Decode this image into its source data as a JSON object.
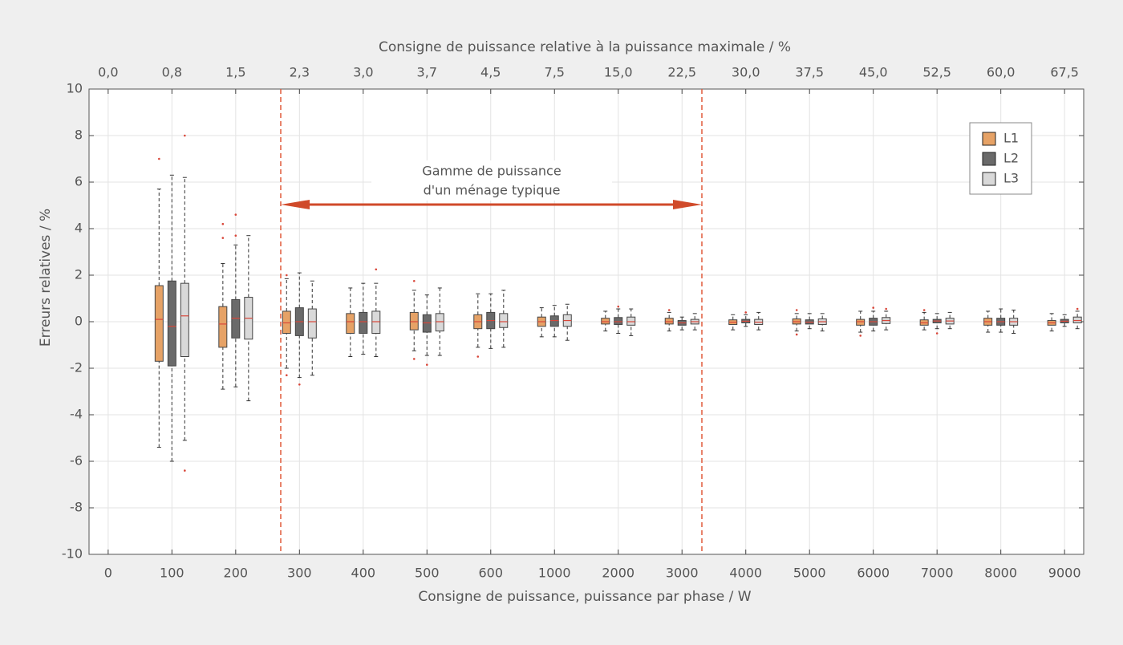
{
  "chart_data": {
    "type": "box",
    "x_label": "Consigne de puissance, puissance par phase / W",
    "x2_label": "Consigne de puissance relative à la puissance maximale / %",
    "y_label": "Erreurs relatives / %",
    "categories": [
      "0",
      "100",
      "200",
      "300",
      "400",
      "500",
      "600",
      "1000",
      "2000",
      "3000",
      "4000",
      "5000",
      "6000",
      "7000",
      "8000",
      "9000"
    ],
    "top_categories": [
      "0,0",
      "0,8",
      "1,5",
      "2,3",
      "3,0",
      "3,7",
      "4,5",
      "7,5",
      "15,0",
      "22,5",
      "30,0",
      "37,5",
      "45,0",
      "52,5",
      "60,0",
      "67,5"
    ],
    "ylim": [
      -10,
      10
    ],
    "yticks": [
      -10,
      -8,
      -6,
      -4,
      -2,
      0,
      2,
      4,
      6,
      8,
      10
    ],
    "grid": true,
    "legend": "upper right",
    "median_color": "#d9473a",
    "annotation": [
      "Gamme de puissance",
      "d'un ménage typique"
    ],
    "series": [
      {
        "name": "L1",
        "color": "#e6a266",
        "boxes": [
          null,
          {
            "min": -5.4,
            "q1": -1.7,
            "median": 0.1,
            "q3": 1.55,
            "max": 5.7,
            "outliers": [
              7.0
            ]
          },
          {
            "min": -2.9,
            "q1": -1.1,
            "median": -0.1,
            "q3": 0.65,
            "max": 2.5,
            "outliers": [
              4.2,
              3.6
            ]
          },
          {
            "min": -2.0,
            "q1": -0.5,
            "median": -0.05,
            "q3": 0.45,
            "max": 1.85,
            "outliers": [
              -2.3,
              2.0
            ]
          },
          {
            "min": -1.5,
            "q1": -0.5,
            "median": 0,
            "q3": 0.35,
            "max": 1.45
          },
          {
            "min": -1.25,
            "q1": -0.35,
            "median": 0,
            "q3": 0.4,
            "max": 1.35,
            "outliers": [
              1.75,
              -1.6
            ]
          },
          {
            "min": -1.1,
            "q1": -0.3,
            "median": 0,
            "q3": 0.3,
            "max": 1.2,
            "outliers": [
              -1.5
            ]
          },
          {
            "min": -0.65,
            "q1": -0.2,
            "median": 0,
            "q3": 0.2,
            "max": 0.6
          },
          {
            "min": -0.4,
            "q1": -0.1,
            "median": 0,
            "q3": 0.15,
            "max": 0.45
          },
          {
            "min": -0.4,
            "q1": -0.1,
            "median": 0,
            "q3": 0.15,
            "max": 0.4,
            "outliers": [
              0.5
            ]
          },
          {
            "min": -0.35,
            "q1": -0.12,
            "median": -0.02,
            "q3": 0.08,
            "max": 0.3
          },
          {
            "min": -0.4,
            "q1": -0.1,
            "median": 0,
            "q3": 0.12,
            "max": 0.35,
            "outliers": [
              0.5,
              -0.55
            ]
          },
          {
            "min": -0.45,
            "q1": -0.15,
            "median": 0,
            "q3": 0.1,
            "max": 0.45,
            "outliers": [
              -0.6
            ]
          },
          {
            "min": -0.35,
            "q1": -0.15,
            "median": -0.05,
            "q3": 0.08,
            "max": 0.4,
            "outliers": [
              0.5
            ]
          },
          {
            "min": -0.45,
            "q1": -0.15,
            "median": 0,
            "q3": 0.15,
            "max": 0.45
          },
          {
            "min": -0.4,
            "q1": -0.15,
            "median": -0.05,
            "q3": 0.05,
            "max": 0.35
          }
        ]
      },
      {
        "name": "L2",
        "color": "#6a6a6a",
        "boxes": [
          null,
          {
            "min": -6.0,
            "q1": -1.9,
            "median": -0.2,
            "q3": 1.75,
            "max": 6.3
          },
          {
            "min": -2.8,
            "q1": -0.7,
            "median": 0.15,
            "q3": 0.95,
            "max": 3.3,
            "outliers": [
              4.6,
              3.7
            ]
          },
          {
            "min": -2.4,
            "q1": -0.6,
            "median": 0,
            "q3": 0.6,
            "max": 2.1,
            "outliers": [
              -2.7
            ]
          },
          {
            "min": -1.4,
            "q1": -0.5,
            "median": 0,
            "q3": 0.4,
            "max": 1.65
          },
          {
            "min": -1.45,
            "q1": -0.45,
            "median": -0.05,
            "q3": 0.3,
            "max": 1.15,
            "outliers": [
              -1.85
            ]
          },
          {
            "min": -1.15,
            "q1": -0.3,
            "median": 0.05,
            "q3": 0.4,
            "max": 1.2
          },
          {
            "min": -0.65,
            "q1": -0.2,
            "median": 0.05,
            "q3": 0.25,
            "max": 0.7
          },
          {
            "min": -0.5,
            "q1": -0.12,
            "median": 0,
            "q3": 0.18,
            "max": 0.55,
            "outliers": [
              0.65
            ]
          },
          {
            "min": -0.35,
            "q1": -0.15,
            "median": -0.05,
            "q3": 0.05,
            "max": 0.2
          },
          {
            "min": -0.2,
            "q1": -0.05,
            "median": 0.02,
            "q3": 0.1,
            "max": 0.3,
            "outliers": [
              0.4
            ]
          },
          {
            "min": -0.3,
            "q1": -0.1,
            "median": -0.02,
            "q3": 0.08,
            "max": 0.35
          },
          {
            "min": -0.4,
            "q1": -0.15,
            "median": 0,
            "q3": 0.15,
            "max": 0.45,
            "outliers": [
              0.6
            ]
          },
          {
            "min": -0.3,
            "q1": -0.05,
            "median": 0.03,
            "q3": 0.1,
            "max": 0.35,
            "outliers": [
              -0.5
            ]
          },
          {
            "min": -0.45,
            "q1": -0.15,
            "median": 0,
            "q3": 0.15,
            "max": 0.55
          },
          {
            "min": -0.2,
            "q1": -0.05,
            "median": 0.02,
            "q3": 0.1,
            "max": 0.3
          }
        ]
      },
      {
        "name": "L3",
        "color": "#d9d9d9",
        "boxes": [
          null,
          {
            "min": -5.1,
            "q1": -1.5,
            "median": 0.25,
            "q3": 1.65,
            "max": 6.2,
            "outliers": [
              8.0,
              -6.4
            ]
          },
          {
            "min": -3.4,
            "q1": -0.75,
            "median": 0.15,
            "q3": 1.05,
            "max": 3.7
          },
          {
            "min": -2.3,
            "q1": -0.7,
            "median": 0,
            "q3": 0.55,
            "max": 1.75
          },
          {
            "min": -1.5,
            "q1": -0.5,
            "median": 0,
            "q3": 0.45,
            "max": 1.65,
            "outliers": [
              2.25
            ]
          },
          {
            "min": -1.45,
            "q1": -0.4,
            "median": 0,
            "q3": 0.35,
            "max": 1.45
          },
          {
            "min": -1.1,
            "q1": -0.25,
            "median": 0,
            "q3": 0.35,
            "max": 1.35
          },
          {
            "min": -0.8,
            "q1": -0.2,
            "median": 0.05,
            "q3": 0.3,
            "max": 0.75
          },
          {
            "min": -0.6,
            "q1": -0.15,
            "median": 0,
            "q3": 0.2,
            "max": 0.55
          },
          {
            "min": -0.35,
            "q1": -0.1,
            "median": 0,
            "q3": 0.1,
            "max": 0.35
          },
          {
            "min": -0.35,
            "q1": -0.12,
            "median": -0.02,
            "q3": 0.1,
            "max": 0.4
          },
          {
            "min": -0.4,
            "q1": -0.12,
            "median": 0,
            "q3": 0.12,
            "max": 0.35
          },
          {
            "min": -0.35,
            "q1": -0.08,
            "median": 0.05,
            "q3": 0.18,
            "max": 0.45,
            "outliers": [
              0.55
            ]
          },
          {
            "min": -0.3,
            "q1": -0.1,
            "median": 0.03,
            "q3": 0.15,
            "max": 0.4
          },
          {
            "min": -0.5,
            "q1": -0.15,
            "median": 0,
            "q3": 0.15,
            "max": 0.5
          },
          {
            "min": -0.3,
            "q1": -0.05,
            "median": 0.05,
            "q3": 0.2,
            "max": 0.45,
            "outliers": [
              0.55
            ]
          }
        ]
      }
    ]
  }
}
